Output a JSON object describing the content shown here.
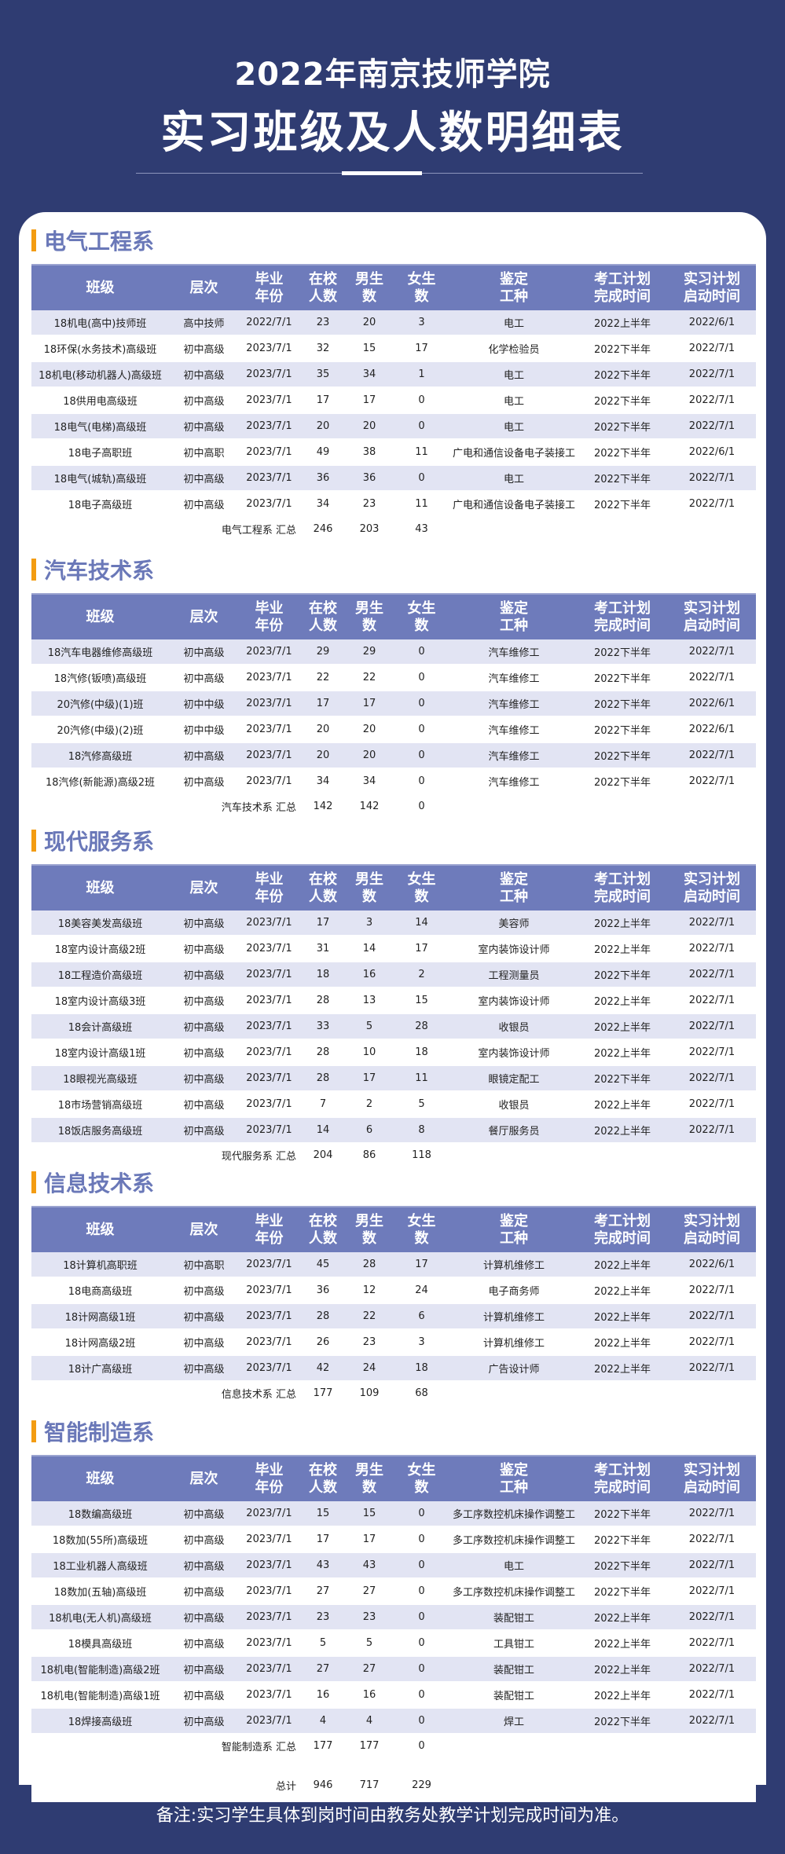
{
  "header": {
    "title_line1": "2022年南京技师学院",
    "title_line2": "实习班级及人数明细表"
  },
  "columns": [
    "班级",
    "层次",
    "毕业\n年份",
    "在校\n人数",
    "男生\n数",
    "女生\n数",
    "鉴定\n工种",
    "考工计划\n完成时间",
    "实习计划\n启动时间"
  ],
  "colors": {
    "background": "#2f3c72",
    "header": "#6e7bbb",
    "stripe": "#e2e4f3",
    "section_title": "#6a78b8",
    "accent_bar": "#f39c12"
  },
  "sections": [
    {
      "name": "电气工程系",
      "rows": [
        [
          "18机电(高中)技师班",
          "高中技师",
          "2022/7/1",
          "23",
          "20",
          "3",
          "电工",
          "2022上半年",
          "2022/6/1"
        ],
        [
          "18环保(水务技术)高级班",
          "初中高级",
          "2023/7/1",
          "32",
          "15",
          "17",
          "化学检验员",
          "2022下半年",
          "2022/7/1"
        ],
        [
          "18机电(移动机器人)高级班",
          "初中高级",
          "2023/7/1",
          "35",
          "34",
          "1",
          "电工",
          "2022下半年",
          "2022/7/1"
        ],
        [
          "18供用电高级班",
          "初中高级",
          "2023/7/1",
          "17",
          "17",
          "0",
          "电工",
          "2022下半年",
          "2022/7/1"
        ],
        [
          "18电气(电梯)高级班",
          "初中高级",
          "2023/7/1",
          "20",
          "20",
          "0",
          "电工",
          "2022下半年",
          "2022/7/1"
        ],
        [
          "18电子高职班",
          "初中高职",
          "2023/7/1",
          "49",
          "38",
          "11",
          "广电和通信设备电子装接工",
          "2022下半年",
          "2022/6/1"
        ],
        [
          "18电气(城轨)高级班",
          "初中高级",
          "2023/7/1",
          "36",
          "36",
          "0",
          "电工",
          "2022下半年",
          "2022/7/1"
        ],
        [
          "18电子高级班",
          "初中高级",
          "2023/7/1",
          "34",
          "23",
          "11",
          "广电和通信设备电子装接工",
          "2022下半年",
          "2022/7/1"
        ]
      ],
      "summary": {
        "label": "电气工程系 汇总",
        "total": "246",
        "male": "203",
        "female": "43"
      }
    },
    {
      "name": "汽车技术系",
      "rows": [
        [
          "18汽车电器维修高级班",
          "初中高级",
          "2023/7/1",
          "29",
          "29",
          "0",
          "汽车维修工",
          "2022下半年",
          "2022/7/1"
        ],
        [
          "18汽修(钣喷)高级班",
          "初中高级",
          "2023/7/1",
          "22",
          "22",
          "0",
          "汽车维修工",
          "2022下半年",
          "2022/7/1"
        ],
        [
          "20汽修(中级)(1)班",
          "初中中级",
          "2023/7/1",
          "17",
          "17",
          "0",
          "汽车维修工",
          "2022下半年",
          "2022/6/1"
        ],
        [
          "20汽修(中级)(2)班",
          "初中中级",
          "2023/7/1",
          "20",
          "20",
          "0",
          "汽车维修工",
          "2022下半年",
          "2022/6/1"
        ],
        [
          "18汽修高级班",
          "初中高级",
          "2023/7/1",
          "20",
          "20",
          "0",
          "汽车维修工",
          "2022下半年",
          "2022/7/1"
        ],
        [
          "18汽修(新能源)高级2班",
          "初中高级",
          "2023/7/1",
          "34",
          "34",
          "0",
          "汽车维修工",
          "2022下半年",
          "2022/7/1"
        ]
      ],
      "summary": {
        "label": "汽车技术系 汇总",
        "total": "142",
        "male": "142",
        "female": "0"
      }
    },
    {
      "name": "现代服务系",
      "rows": [
        [
          "18美容美发高级班",
          "初中高级",
          "2023/7/1",
          "17",
          "3",
          "14",
          "美容师",
          "2022上半年",
          "2022/7/1"
        ],
        [
          "18室内设计高级2班",
          "初中高级",
          "2023/7/1",
          "31",
          "14",
          "17",
          "室内装饰设计师",
          "2022上半年",
          "2022/7/1"
        ],
        [
          "18工程造价高级班",
          "初中高级",
          "2023/7/1",
          "18",
          "16",
          "2",
          "工程测量员",
          "2022下半年",
          "2022/7/1"
        ],
        [
          "18室内设计高级3班",
          "初中高级",
          "2023/7/1",
          "28",
          "13",
          "15",
          "室内装饰设计师",
          "2022上半年",
          "2022/7/1"
        ],
        [
          "18会计高级班",
          "初中高级",
          "2023/7/1",
          "33",
          "5",
          "28",
          "收银员",
          "2022上半年",
          "2022/7/1"
        ],
        [
          "18室内设计高级1班",
          "初中高级",
          "2023/7/1",
          "28",
          "10",
          "18",
          "室内装饰设计师",
          "2022上半年",
          "2022/7/1"
        ],
        [
          "18眼视光高级班",
          "初中高级",
          "2023/7/1",
          "28",
          "17",
          "11",
          "眼镜定配工",
          "2022下半年",
          "2022/7/1"
        ],
        [
          "18市场营销高级班",
          "初中高级",
          "2023/7/1",
          "7",
          "2",
          "5",
          "收银员",
          "2022上半年",
          "2022/7/1"
        ],
        [
          "18饭店服务高级班",
          "初中高级",
          "2023/7/1",
          "14",
          "6",
          "8",
          "餐厅服务员",
          "2022上半年",
          "2022/7/1"
        ]
      ],
      "summary": {
        "label": "现代服务系 汇总",
        "total": "204",
        "male": "86",
        "female": "118"
      }
    },
    {
      "name": "信息技术系",
      "rows": [
        [
          "18计算机高职班",
          "初中高职",
          "2023/7/1",
          "45",
          "28",
          "17",
          "计算机维修工",
          "2022上半年",
          "2022/6/1"
        ],
        [
          "18电商高级班",
          "初中高级",
          "2023/7/1",
          "36",
          "12",
          "24",
          "电子商务师",
          "2022上半年",
          "2022/7/1"
        ],
        [
          "18计网高级1班",
          "初中高级",
          "2023/7/1",
          "28",
          "22",
          "6",
          "计算机维修工",
          "2022上半年",
          "2022/7/1"
        ],
        [
          "18计网高级2班",
          "初中高级",
          "2023/7/1",
          "26",
          "23",
          "3",
          "计算机维修工",
          "2022上半年",
          "2022/7/1"
        ],
        [
          "18计广高级班",
          "初中高级",
          "2023/7/1",
          "42",
          "24",
          "18",
          "广告设计师",
          "2022上半年",
          "2022/7/1"
        ]
      ],
      "summary": {
        "label": "信息技术系 汇总",
        "total": "177",
        "male": "109",
        "female": "68"
      }
    },
    {
      "name": "智能制造系",
      "rows": [
        [
          "18数编高级班",
          "初中高级",
          "2023/7/1",
          "15",
          "15",
          "0",
          "多工序数控机床操作调整工",
          "2022下半年",
          "2022/7/1"
        ],
        [
          "18数加(55所)高级班",
          "初中高级",
          "2023/7/1",
          "17",
          "17",
          "0",
          "多工序数控机床操作调整工",
          "2022下半年",
          "2022/7/1"
        ],
        [
          "18工业机器人高级班",
          "初中高级",
          "2023/7/1",
          "43",
          "43",
          "0",
          "电工",
          "2022下半年",
          "2022/7/1"
        ],
        [
          "18数加(五轴)高级班",
          "初中高级",
          "2023/7/1",
          "27",
          "27",
          "0",
          "多工序数控机床操作调整工",
          "2022下半年",
          "2022/7/1"
        ],
        [
          "18机电(无人机)高级班",
          "初中高级",
          "2023/7/1",
          "23",
          "23",
          "0",
          "装配钳工",
          "2022上半年",
          "2022/7/1"
        ],
        [
          "18模具高级班",
          "初中高级",
          "2023/7/1",
          "5",
          "5",
          "0",
          "工具钳工",
          "2022上半年",
          "2022/7/1"
        ],
        [
          "18机电(智能制造)高级2班",
          "初中高级",
          "2023/7/1",
          "27",
          "27",
          "0",
          "装配钳工",
          "2022上半年",
          "2022/7/1"
        ],
        [
          "18机电(智能制造)高级1班",
          "初中高级",
          "2023/7/1",
          "16",
          "16",
          "0",
          "装配钳工",
          "2022上半年",
          "2022/7/1"
        ],
        [
          "18焊接高级班",
          "初中高级",
          "2023/7/1",
          "4",
          "4",
          "0",
          "焊工",
          "2022下半年",
          "2022/7/1"
        ]
      ],
      "summary": {
        "label": "智能制造系 汇总",
        "total": "177",
        "male": "177",
        "female": "0"
      }
    }
  ],
  "grand_total": {
    "label": "总计",
    "total": "946",
    "male": "717",
    "female": "229"
  },
  "footer": {
    "note": "备注:实习学生具体到岗时间由教务处教学计划完成时间为准。"
  }
}
